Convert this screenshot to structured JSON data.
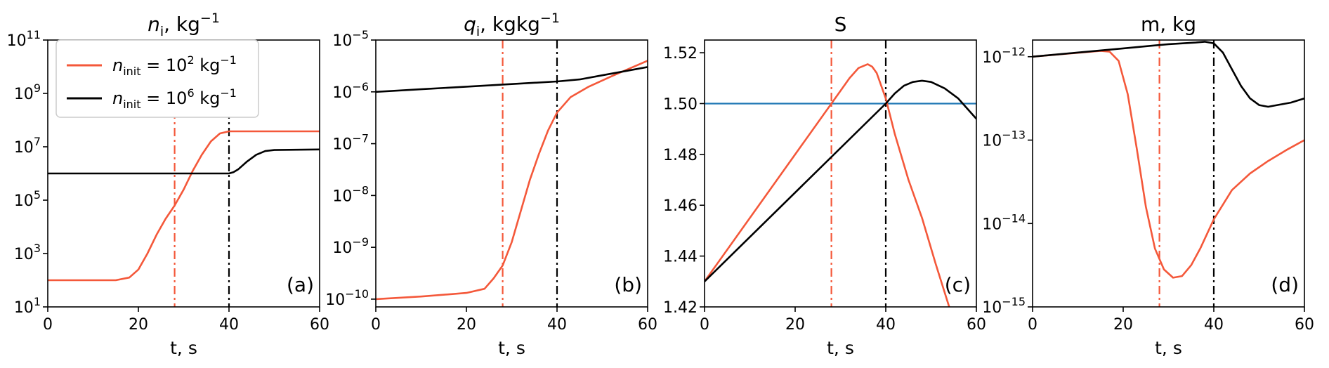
{
  "colors": {
    "low": "#f4583a",
    "high": "#000000",
    "threshold": "#1f77b4"
  },
  "legend": {
    "entries": [
      {
        "series": "low",
        "label_main": "n",
        "label_sub": "init",
        "label_rest": " = 10",
        "label_exp": "2",
        "label_unit": " kg",
        "label_unit_exp": "−1"
      },
      {
        "series": "high",
        "label_main": "n",
        "label_sub": "init",
        "label_rest": " = 10",
        "label_exp": "6",
        "label_unit": " kg",
        "label_unit_exp": "−1"
      }
    ]
  },
  "chart_data": [
    {
      "id": "ni",
      "type": "line",
      "title": {
        "main": "n",
        "sub": "i",
        "rest": ", kg",
        "sup": "−1"
      },
      "tag": "(a)",
      "xlabel": "t, s",
      "xlim": [
        0,
        60
      ],
      "xticks": [
        "0",
        "20",
        "40",
        "60"
      ],
      "yscale": "log",
      "ylim": [
        1,
        11
      ],
      "yticks": [
        {
          "base": "10",
          "exp": "1"
        },
        {
          "base": "10",
          "exp": "3"
        },
        {
          "base": "10",
          "exp": "5"
        },
        {
          "base": "10",
          "exp": "7"
        },
        {
          "base": "10",
          "exp": "9"
        },
        {
          "base": "10",
          "exp": "11"
        }
      ],
      "vlines": [
        {
          "x": 28,
          "series": "low"
        },
        {
          "x": 40,
          "series": "high"
        }
      ],
      "series": [
        {
          "key": "low",
          "points": [
            [
              0,
              2
            ],
            [
              15,
              2
            ],
            [
              18,
              2.1
            ],
            [
              20,
              2.4
            ],
            [
              22,
              3.0
            ],
            [
              24,
              3.7
            ],
            [
              26,
              4.3
            ],
            [
              28,
              4.8
            ],
            [
              30,
              5.4
            ],
            [
              32,
              6.1
            ],
            [
              34,
              6.7
            ],
            [
              36,
              7.2
            ],
            [
              38,
              7.5
            ],
            [
              40,
              7.58
            ],
            [
              60,
              7.58
            ]
          ]
        },
        {
          "key": "high",
          "points": [
            [
              0,
              6
            ],
            [
              40,
              6
            ],
            [
              41,
              6.05
            ],
            [
              42,
              6.15
            ],
            [
              44,
              6.45
            ],
            [
              46,
              6.7
            ],
            [
              48,
              6.84
            ],
            [
              50,
              6.88
            ],
            [
              60,
              6.9
            ]
          ]
        }
      ]
    },
    {
      "id": "qi",
      "type": "line",
      "title": {
        "main": "q",
        "sub": "i",
        "rest": ", kgkg",
        "sup": "−1"
      },
      "tag": "(b)",
      "xlabel": "t, s",
      "xlim": [
        0,
        60
      ],
      "xticks": [
        "0",
        "20",
        "40",
        "60"
      ],
      "yscale": "log",
      "ylim": [
        -10.15,
        -5
      ],
      "yticks": [
        {
          "base": "10",
          "exp": "−10"
        },
        {
          "base": "10",
          "exp": "−9"
        },
        {
          "base": "10",
          "exp": "−8"
        },
        {
          "base": "10",
          "exp": "−7"
        },
        {
          "base": "10",
          "exp": "−6"
        },
        {
          "base": "10",
          "exp": "−5"
        }
      ],
      "vlines": [
        {
          "x": 28,
          "series": "low"
        },
        {
          "x": 40,
          "series": "high"
        }
      ],
      "series": [
        {
          "key": "low",
          "points": [
            [
              0,
              -10.0
            ],
            [
              10,
              -9.95
            ],
            [
              20,
              -9.88
            ],
            [
              24,
              -9.8
            ],
            [
              26,
              -9.6
            ],
            [
              28,
              -9.35
            ],
            [
              30,
              -8.9
            ],
            [
              32,
              -8.3
            ],
            [
              34,
              -7.7
            ],
            [
              36,
              -7.2
            ],
            [
              38,
              -6.75
            ],
            [
              40,
              -6.4
            ],
            [
              43,
              -6.1
            ],
            [
              47,
              -5.9
            ],
            [
              52,
              -5.7
            ],
            [
              56,
              -5.55
            ],
            [
              60,
              -5.4
            ]
          ]
        },
        {
          "key": "high",
          "points": [
            [
              0,
              -6.0
            ],
            [
              10,
              -5.95
            ],
            [
              20,
              -5.9
            ],
            [
              30,
              -5.85
            ],
            [
              40,
              -5.8
            ],
            [
              45,
              -5.76
            ],
            [
              50,
              -5.68
            ],
            [
              55,
              -5.6
            ],
            [
              60,
              -5.52
            ]
          ]
        }
      ]
    },
    {
      "id": "S",
      "type": "line",
      "title": {
        "main": "S",
        "sub": "",
        "rest": "",
        "sup": ""
      },
      "tag": "(c)",
      "xlabel": "t, s",
      "xlim": [
        0,
        60
      ],
      "xticks": [
        "0",
        "20",
        "40",
        "60"
      ],
      "yscale": "linear",
      "ylim": [
        1.42,
        1.525
      ],
      "yticks": [
        {
          "base": "1.42",
          "exp": ""
        },
        {
          "base": "1.44",
          "exp": ""
        },
        {
          "base": "1.46",
          "exp": ""
        },
        {
          "base": "1.48",
          "exp": ""
        },
        {
          "base": "1.50",
          "exp": ""
        },
        {
          "base": "1.52",
          "exp": ""
        }
      ],
      "hline": {
        "y": 1.5,
        "series": "threshold"
      },
      "vlines": [
        {
          "x": 28,
          "series": "low"
        },
        {
          "x": 40,
          "series": "high"
        }
      ],
      "series": [
        {
          "key": "low",
          "points": [
            [
              0,
              1.43
            ],
            [
              28,
              1.5
            ],
            [
              32,
              1.51
            ],
            [
              34,
              1.514
            ],
            [
              36,
              1.5155
            ],
            [
              37,
              1.5145
            ],
            [
              38,
              1.512
            ],
            [
              40,
              1.502
            ],
            [
              42,
              1.488
            ],
            [
              45,
              1.47
            ],
            [
              48,
              1.455
            ],
            [
              51,
              1.437
            ],
            [
              54,
              1.42
            ]
          ]
        },
        {
          "key": "high",
          "points": [
            [
              0,
              1.43
            ],
            [
              40,
              1.5
            ],
            [
              42,
              1.504
            ],
            [
              44,
              1.507
            ],
            [
              46,
              1.5085
            ],
            [
              48,
              1.509
            ],
            [
              50,
              1.5085
            ],
            [
              53,
              1.506
            ],
            [
              56,
              1.502
            ],
            [
              58,
              1.498
            ],
            [
              60,
              1.494
            ]
          ]
        }
      ]
    },
    {
      "id": "m",
      "type": "line",
      "title": {
        "main": "m, kg",
        "sub": "",
        "rest": "",
        "sup": ""
      },
      "tag": "(d)",
      "xlabel": "t, s",
      "xlim": [
        0,
        60
      ],
      "xticks": [
        "0",
        "20",
        "40",
        "60"
      ],
      "yscale": "log",
      "ylim": [
        -15,
        -11.8
      ],
      "yticks": [
        {
          "base": "10",
          "exp": "−15"
        },
        {
          "base": "10",
          "exp": "−14"
        },
        {
          "base": "10",
          "exp": "−13"
        },
        {
          "base": "10",
          "exp": "−12"
        }
      ],
      "vlines": [
        {
          "x": 28,
          "series": "low"
        },
        {
          "x": 40,
          "series": "high"
        }
      ],
      "series": [
        {
          "key": "low",
          "points": [
            [
              0,
              -12.0
            ],
            [
              15,
              -11.93
            ],
            [
              17,
              -11.94
            ],
            [
              19,
              -12.05
            ],
            [
              21,
              -12.45
            ],
            [
              23,
              -13.1
            ],
            [
              25,
              -13.8
            ],
            [
              27,
              -14.3
            ],
            [
              29,
              -14.55
            ],
            [
              31,
              -14.65
            ],
            [
              33,
              -14.63
            ],
            [
              35,
              -14.5
            ],
            [
              37,
              -14.3
            ],
            [
              40,
              -13.95
            ],
            [
              44,
              -13.6
            ],
            [
              48,
              -13.4
            ],
            [
              52,
              -13.25
            ],
            [
              56,
              -13.12
            ],
            [
              60,
              -13.0
            ]
          ]
        },
        {
          "key": "high",
          "points": [
            [
              0,
              -12.0
            ],
            [
              10,
              -11.95
            ],
            [
              20,
              -11.9
            ],
            [
              30,
              -11.85
            ],
            [
              36,
              -11.83
            ],
            [
              38,
              -11.82
            ],
            [
              40,
              -11.84
            ],
            [
              42,
              -11.95
            ],
            [
              44,
              -12.15
            ],
            [
              46,
              -12.35
            ],
            [
              48,
              -12.5
            ],
            [
              50,
              -12.58
            ],
            [
              52,
              -12.6
            ],
            [
              54,
              -12.58
            ],
            [
              57,
              -12.55
            ],
            [
              60,
              -12.5
            ]
          ]
        }
      ]
    }
  ]
}
